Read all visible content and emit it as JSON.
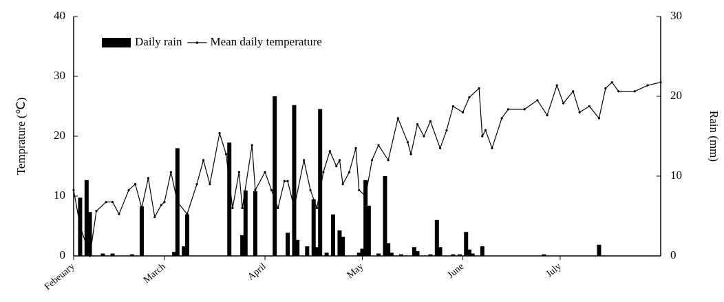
{
  "chart_data": {
    "type": "combo",
    "ylabel": "Temprature (℃)",
    "y2label": "Rain (mm)",
    "xlim": [
      0,
      181
    ],
    "xticks": [
      {
        "value": 0,
        "label": "Febeuary"
      },
      {
        "value": 28,
        "label": "March"
      },
      {
        "value": 59,
        "label": "April"
      },
      {
        "value": 89,
        "label": "May"
      },
      {
        "value": 120,
        "label": "June"
      },
      {
        "value": 150,
        "label": "July"
      }
    ],
    "ylim": [
      0,
      40
    ],
    "yticks": [
      0,
      10,
      20,
      30,
      40
    ],
    "y2lim": [
      0,
      30
    ],
    "y2ticks": [
      0,
      10,
      20,
      30
    ],
    "legend": "top-left",
    "series": [
      {
        "name": "Daily rain",
        "type": "bar",
        "axis": "y2",
        "color": "#000000",
        "x": [
          2,
          4,
          5,
          9,
          12,
          18,
          21,
          31,
          32,
          34,
          35,
          48,
          52,
          53,
          56,
          62,
          66,
          68,
          69,
          72,
          74,
          75,
          76,
          78,
          80,
          82,
          83,
          88,
          89,
          90,
          91,
          94,
          96,
          97,
          98,
          101,
          105,
          106,
          110,
          112,
          113,
          117,
          119,
          121,
          122,
          123,
          126,
          145,
          162
        ],
        "values": [
          7.3,
          9.5,
          5.5,
          0.3,
          0.3,
          0.2,
          6.2,
          0.5,
          13.5,
          1.2,
          5.2,
          14.2,
          2.6,
          8.2,
          8.1,
          20,
          2.9,
          18.9,
          2,
          1.2,
          7.1,
          1.1,
          18.4,
          0.4,
          5.2,
          3.2,
          2.4,
          0.4,
          0.9,
          9.5,
          6.3,
          0.3,
          10,
          1.6,
          0.4,
          0.2,
          1.1,
          0.6,
          0.2,
          4.5,
          1.1,
          0.2,
          0.2,
          3,
          0.8,
          0.3,
          1.2,
          0.2,
          1.4
        ]
      },
      {
        "name": "Mean daily temperature",
        "type": "line",
        "color": "#000000",
        "x": [
          0,
          2,
          5,
          7,
          10,
          12,
          14,
          17,
          19,
          21,
          23,
          25,
          27,
          28,
          30,
          32,
          35,
          38,
          40,
          42,
          45,
          47,
          49,
          51,
          52,
          55,
          56,
          59,
          61,
          63,
          65,
          66,
          68,
          71,
          73,
          75,
          77,
          79,
          81,
          82,
          83,
          85,
          87,
          88,
          90,
          92,
          94,
          97,
          100,
          103,
          104,
          106,
          108,
          110,
          113,
          115,
          117,
          120,
          122,
          125,
          126,
          127,
          129,
          132,
          134,
          139,
          143,
          146,
          149,
          151,
          154,
          156,
          159,
          162,
          164,
          166,
          168,
          173,
          177,
          181
        ],
        "values": [
          11,
          5,
          0,
          7.5,
          9,
          9,
          7,
          11,
          12,
          8,
          13,
          6.5,
          8.5,
          9,
          14,
          9,
          7,
          12,
          16,
          12,
          20.5,
          17,
          8,
          14,
          8,
          18.5,
          11,
          14,
          11,
          8,
          12.5,
          12.5,
          8,
          16,
          11,
          8,
          14,
          17.5,
          15,
          16,
          12,
          14,
          18,
          11,
          10,
          16,
          18.5,
          16,
          23,
          19,
          17,
          22,
          20,
          22.5,
          18,
          21,
          25,
          24,
          26.5,
          28,
          20,
          21,
          18,
          23,
          24.5,
          24.5,
          26,
          23.5,
          28.5,
          25.5,
          27.5,
          24,
          25,
          23,
          28,
          29,
          27.5,
          27.5,
          28.5,
          29
        ]
      }
    ]
  }
}
